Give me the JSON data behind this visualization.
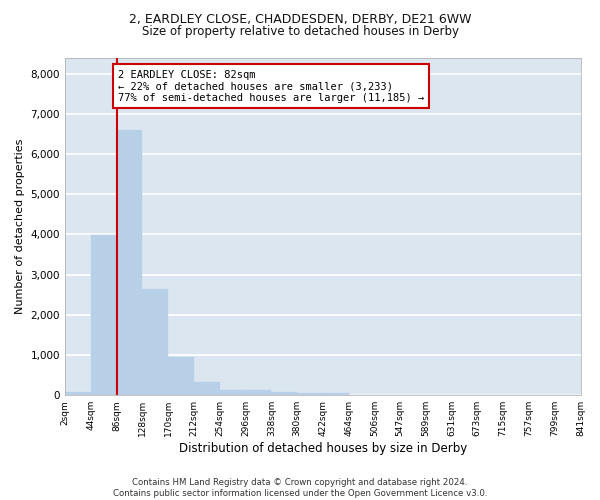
{
  "title_line1": "2, EARDLEY CLOSE, CHADDESDEN, DERBY, DE21 6WW",
  "title_line2": "Size of property relative to detached houses in Derby",
  "xlabel": "Distribution of detached houses by size in Derby",
  "ylabel": "Number of detached properties",
  "bar_color": "#b8cfe8",
  "background_color": "#dce6f1",
  "grid_color": "#ffffff",
  "bins": [
    2,
    44,
    86,
    128,
    170,
    212,
    254,
    296,
    338,
    380,
    422,
    464,
    506,
    547,
    589,
    631,
    673,
    715,
    757,
    799,
    841
  ],
  "bin_labels": [
    "2sqm",
    "44sqm",
    "86sqm",
    "128sqm",
    "170sqm",
    "212sqm",
    "254sqm",
    "296sqm",
    "338sqm",
    "380sqm",
    "422sqm",
    "464sqm",
    "506sqm",
    "547sqm",
    "589sqm",
    "631sqm",
    "673sqm",
    "715sqm",
    "757sqm",
    "799sqm",
    "841sqm"
  ],
  "values": [
    75,
    3980,
    6600,
    2630,
    960,
    320,
    140,
    130,
    75,
    65,
    50,
    0,
    0,
    0,
    0,
    0,
    0,
    0,
    0,
    0
  ],
  "ylim": [
    0,
    8400
  ],
  "yticks": [
    0,
    1000,
    2000,
    3000,
    4000,
    5000,
    6000,
    7000,
    8000
  ],
  "property_line_x": 86,
  "annotation_text": "2 EARDLEY CLOSE: 82sqm\n← 22% of detached houses are smaller (3,233)\n77% of semi-detached houses are larger (11,185) →",
  "annotation_box_color": "#ffffff",
  "annotation_box_edge": "#cc0000",
  "vline_color": "#cc0000",
  "footer_text": "Contains HM Land Registry data © Crown copyright and database right 2024.\nContains public sector information licensed under the Open Government Licence v3.0."
}
